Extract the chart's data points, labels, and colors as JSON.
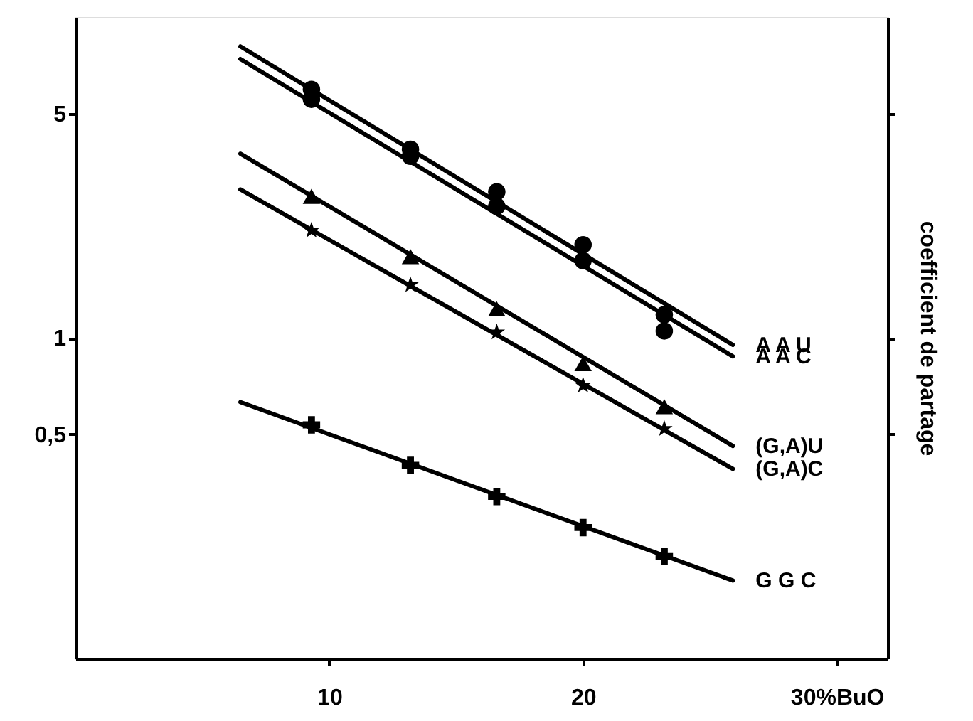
{
  "chart_data": {
    "type": "scatter",
    "ylabel": "coefficient de partage",
    "log": "y",
    "xlim": [
      0,
      32
    ],
    "ylim": [
      0.1,
      10
    ],
    "xticks": [
      10,
      20,
      {
        "value": 30,
        "label": "30%BuO"
      }
    ],
    "yticks": [
      {
        "value": 0.5,
        "label": "0,5"
      },
      1,
      5
    ],
    "grid": false,
    "series": [
      {
        "type": "line",
        "name": "A A U",
        "color": "#000000",
        "line_style": "solid",
        "x": [
          6.5,
          25.9
        ],
        "values": [
          8.1,
          0.95
        ]
      },
      {
        "type": "line",
        "name": "A A C",
        "color": "#000000",
        "line_style": "solid",
        "x": [
          6.5,
          25.9
        ],
        "values": [
          7.4,
          0.875
        ]
      },
      {
        "type": "line",
        "name": "(G,A)U",
        "color": "#000000",
        "line_style": "solid",
        "x": [
          6.5,
          25.9
        ],
        "values": [
          3.75,
          0.46
        ]
      },
      {
        "type": "line",
        "name": "(G,A)C",
        "color": "#000000",
        "line_style": "solid",
        "x": [
          6.5,
          25.9
        ],
        "values": [
          2.9,
          0.39
        ]
      },
      {
        "type": "line",
        "name": "G G C",
        "color": "#000000",
        "line_style": "solid",
        "x": [
          6.5,
          25.9
        ],
        "values": [
          0.63,
          0.175
        ]
      },
      {
        "color": "#000000",
        "marker": "circle",
        "x": [
          9.3,
          13.2,
          16.6,
          20.0,
          23.2
        ],
        "values": [
          5.95,
          3.87,
          2.85,
          1.95,
          1.18
        ]
      },
      {
        "color": "#000000",
        "marker": "circle",
        "x": [
          9.3,
          13.2,
          16.6,
          20.0,
          23.2
        ],
        "values": [
          5.54,
          3.68,
          2.57,
          1.74,
          1.05
        ]
      },
      {
        "color": "#000000",
        "marker": "triangle",
        "x": [
          9.3,
          13.2,
          16.6,
          20.0,
          23.2
        ],
        "values": [
          2.76,
          1.79,
          1.23,
          0.83,
          0.61
        ]
      },
      {
        "color": "#000000",
        "marker": "star",
        "x": [
          9.3,
          13.2,
          16.6,
          20.0,
          23.2
        ],
        "values": [
          2.16,
          1.46,
          1.04,
          0.71,
          0.52
        ]
      },
      {
        "color": "#000000",
        "marker": "cross",
        "x": [
          9.3,
          13.2,
          16.6,
          20.0,
          23.2
        ],
        "values": [
          0.535,
          0.4,
          0.32,
          0.256,
          0.208
        ]
      }
    ]
  }
}
